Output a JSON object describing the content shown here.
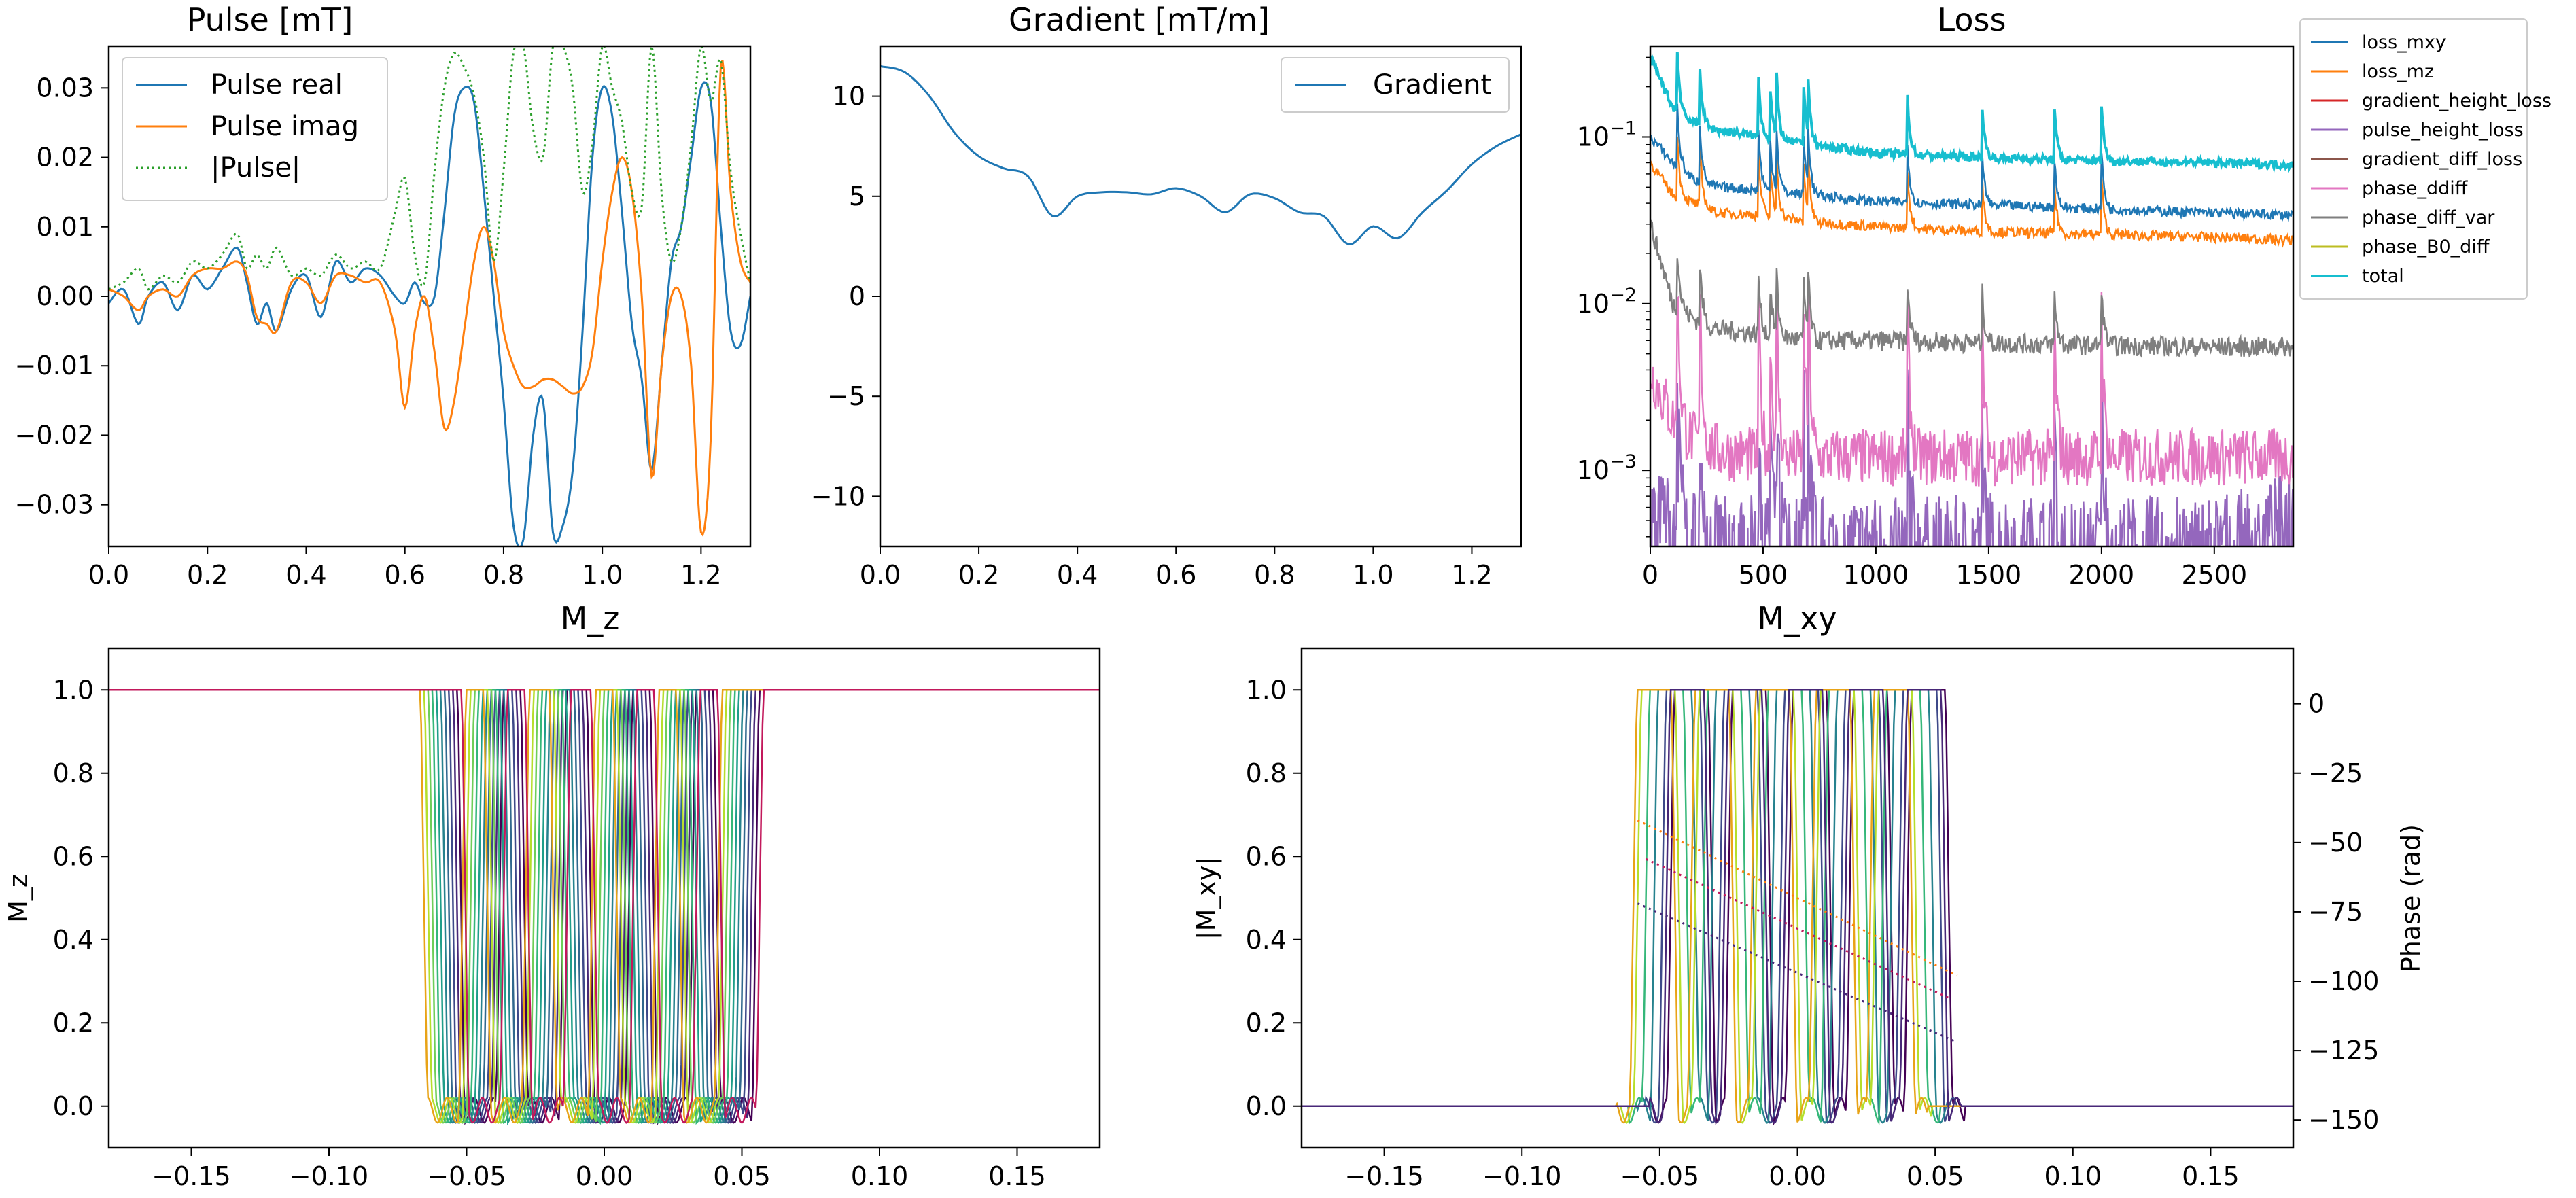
{
  "chart_data": [
    {
      "type": "line",
      "title": "Pulse [mT]",
      "xlim": [
        0,
        1.3
      ],
      "ylim": [
        -0.036,
        0.036
      ],
      "xticks": [
        "0.0",
        "0.2",
        "0.4",
        "0.6",
        "0.8",
        "1.0",
        "1.2"
      ],
      "yticks": [
        "0.03",
        "0.02",
        "0.01",
        "0.00",
        "−0.01",
        "−0.02",
        "−0.03"
      ],
      "legend_position": "top-left",
      "series": [
        {
          "name": "Pulse real",
          "color": "#1f77b4",
          "style": "solid",
          "x": [
            0,
            0.03,
            0.06,
            0.08,
            0.11,
            0.14,
            0.17,
            0.2,
            0.23,
            0.26,
            0.28,
            0.3,
            0.32,
            0.34,
            0.37,
            0.4,
            0.43,
            0.46,
            0.49,
            0.52,
            0.55,
            0.58,
            0.6,
            0.62,
            0.64,
            0.66,
            0.68,
            0.7,
            0.72,
            0.74,
            0.76,
            0.78,
            0.8,
            0.82,
            0.84,
            0.86,
            0.88,
            0.9,
            0.92,
            0.94,
            0.96,
            0.98,
            1.0,
            1.02,
            1.04,
            1.06,
            1.08,
            1.1,
            1.12,
            1.14,
            1.16,
            1.18,
            1.2,
            1.22,
            1.24,
            1.26,
            1.28,
            1.3
          ],
          "y": [
            -0.001,
            0.001,
            -0.004,
            0.0,
            0.002,
            -0.002,
            0.003,
            0.001,
            0.004,
            0.007,
            0.002,
            -0.004,
            -0.001,
            -0.005,
            0.001,
            0.003,
            -0.003,
            0.005,
            0.002,
            0.004,
            0.003,
            0.0,
            -0.001,
            0.002,
            -0.001,
            0.0,
            0.012,
            0.026,
            0.03,
            0.028,
            0.015,
            0.0,
            -0.015,
            -0.033,
            -0.035,
            -0.02,
            -0.015,
            -0.034,
            -0.033,
            -0.025,
            -0.005,
            0.02,
            0.03,
            0.026,
            0.012,
            -0.004,
            -0.012,
            -0.025,
            -0.01,
            0.005,
            0.01,
            0.02,
            0.03,
            0.028,
            0.01,
            -0.005,
            -0.007,
            0.0
          ]
        },
        {
          "name": "Pulse imag",
          "color": "#ff7f0e",
          "style": "solid",
          "x": [
            0,
            0.03,
            0.06,
            0.08,
            0.11,
            0.14,
            0.17,
            0.2,
            0.23,
            0.26,
            0.28,
            0.3,
            0.32,
            0.34,
            0.37,
            0.4,
            0.43,
            0.46,
            0.49,
            0.52,
            0.55,
            0.58,
            0.6,
            0.62,
            0.64,
            0.66,
            0.68,
            0.7,
            0.72,
            0.74,
            0.76,
            0.78,
            0.8,
            0.82,
            0.84,
            0.86,
            0.88,
            0.9,
            0.92,
            0.94,
            0.96,
            0.98,
            1.0,
            1.02,
            1.04,
            1.06,
            1.08,
            1.1,
            1.12,
            1.14,
            1.16,
            1.18,
            1.2,
            1.22,
            1.24,
            1.26,
            1.28,
            1.3
          ],
          "y": [
            0.001,
            0.0,
            -0.002,
            0.0,
            0.001,
            0.0,
            0.003,
            0.004,
            0.004,
            0.005,
            0.003,
            -0.003,
            -0.004,
            -0.005,
            0.002,
            0.002,
            -0.001,
            0.003,
            0.003,
            0.002,
            0.002,
            -0.005,
            -0.016,
            -0.005,
            0.0,
            -0.008,
            -0.019,
            -0.015,
            -0.005,
            0.005,
            0.01,
            0.005,
            -0.005,
            -0.01,
            -0.013,
            -0.013,
            -0.012,
            -0.012,
            -0.013,
            -0.014,
            -0.013,
            -0.008,
            0.005,
            0.015,
            0.02,
            0.015,
            0.0,
            -0.026,
            -0.01,
            0.0,
            0.0,
            -0.01,
            -0.034,
            -0.02,
            0.033,
            0.015,
            0.005,
            0.002
          ]
        },
        {
          "name": "|Pulse|",
          "color": "#2ca02c",
          "style": "dotted",
          "x": [
            0,
            0.03,
            0.06,
            0.08,
            0.11,
            0.14,
            0.17,
            0.2,
            0.23,
            0.26,
            0.28,
            0.3,
            0.32,
            0.34,
            0.37,
            0.4,
            0.43,
            0.46,
            0.49,
            0.52,
            0.55,
            0.58,
            0.6,
            0.62,
            0.64,
            0.66,
            0.68,
            0.7,
            0.72,
            0.74,
            0.76,
            0.78,
            0.8,
            0.82,
            0.84,
            0.86,
            0.88,
            0.9,
            0.92,
            0.94,
            0.96,
            0.98,
            1.0,
            1.02,
            1.04,
            1.06,
            1.08,
            1.1,
            1.12,
            1.14,
            1.16,
            1.18,
            1.2,
            1.22,
            1.24,
            1.26,
            1.28,
            1.3
          ],
          "y": [
            0.001,
            0.002,
            0.004,
            0.001,
            0.003,
            0.002,
            0.005,
            0.004,
            0.006,
            0.009,
            0.004,
            0.006,
            0.004,
            0.007,
            0.003,
            0.004,
            0.003,
            0.006,
            0.004,
            0.005,
            0.004,
            0.012,
            0.017,
            0.006,
            0.002,
            0.018,
            0.03,
            0.035,
            0.033,
            0.029,
            0.02,
            0.005,
            0.018,
            0.035,
            0.036,
            0.024,
            0.02,
            0.036,
            0.036,
            0.03,
            0.015,
            0.022,
            0.036,
            0.03,
            0.025,
            0.015,
            0.013,
            0.036,
            0.015,
            0.005,
            0.01,
            0.022,
            0.036,
            0.028,
            0.034,
            0.018,
            0.009,
            0.002
          ]
        }
      ]
    },
    {
      "type": "line",
      "title": "Gradient [mT/m]",
      "xlim": [
        0,
        1.3
      ],
      "ylim": [
        -12.5,
        12.5
      ],
      "xticks": [
        "0.0",
        "0.2",
        "0.4",
        "0.6",
        "0.8",
        "1.0",
        "1.2"
      ],
      "yticks": [
        "10",
        "5",
        "0",
        "−5",
        "−10"
      ],
      "legend_position": "top-right",
      "series": [
        {
          "name": "Gradient",
          "color": "#1f77b4",
          "x": [
            0,
            0.05,
            0.1,
            0.15,
            0.2,
            0.25,
            0.3,
            0.35,
            0.4,
            0.45,
            0.5,
            0.55,
            0.6,
            0.65,
            0.7,
            0.75,
            0.8,
            0.85,
            0.9,
            0.95,
            1.0,
            1.05,
            1.1,
            1.15,
            1.2,
            1.25,
            1.3
          ],
          "y": [
            11.5,
            11.2,
            10.0,
            8.2,
            7.0,
            6.4,
            6.0,
            4.0,
            5.0,
            5.2,
            5.2,
            5.1,
            5.4,
            5.0,
            4.2,
            5.1,
            4.9,
            4.2,
            4.0,
            2.6,
            3.5,
            2.9,
            4.2,
            5.3,
            6.6,
            7.5,
            8.1
          ]
        }
      ]
    },
    {
      "type": "line",
      "title": "Loss",
      "yscale": "log",
      "xlim": [
        0,
        2850
      ],
      "ylim": [
        0.00035,
        0.35
      ],
      "xticks": [
        "0",
        "500",
        "1000",
        "1500",
        "2000",
        "2500"
      ],
      "yticks": [
        "10",
        "10",
        "10"
      ],
      "ytick_exponents": [
        "−1",
        "−2",
        "−3"
      ],
      "legend_position": "outside-right",
      "series": [
        {
          "name": "loss_mxy",
          "color": "#1f77b4",
          "x": [
            0,
            100,
            200,
            300,
            500,
            700,
            1000,
            1500,
            2000,
            2500,
            2850
          ],
          "y": [
            0.1,
            0.07,
            0.055,
            0.05,
            0.048,
            0.045,
            0.041,
            0.039,
            0.037,
            0.035,
            0.034
          ]
        },
        {
          "name": "loss_mz",
          "color": "#ff7f0e",
          "x": [
            0,
            100,
            200,
            300,
            500,
            700,
            1000,
            1500,
            2000,
            2500,
            2850
          ],
          "y": [
            0.07,
            0.045,
            0.04,
            0.035,
            0.034,
            0.031,
            0.029,
            0.027,
            0.026,
            0.025,
            0.024
          ]
        },
        {
          "name": "gradient_height_loss",
          "color": "#d62728",
          "x": [],
          "y": []
        },
        {
          "name": "pulse_height_loss",
          "color": "#9467bd",
          "x": [
            0,
            300,
            600,
            900,
            1200,
            1500,
            1800,
            2100,
            2400,
            2700,
            2850
          ],
          "y": [
            0.0006,
            0.0004,
            0.0004,
            0.0004,
            0.0004,
            0.0004,
            0.0004,
            0.0004,
            0.0004,
            0.00045,
            0.0006
          ]
        },
        {
          "name": "gradient_diff_loss",
          "color": "#8c564b",
          "x": [],
          "y": []
        },
        {
          "name": "phase_ddiff",
          "color": "#e377c2",
          "x": [
            0,
            100,
            200,
            300,
            500,
            700,
            1000,
            1500,
            2000,
            2500,
            2850
          ],
          "y": [
            0.004,
            0.002,
            0.0015,
            0.0013,
            0.0012,
            0.0012,
            0.0012,
            0.0012,
            0.0012,
            0.0012,
            0.0012
          ]
        },
        {
          "name": "phase_diff_var",
          "color": "#7f7f7f",
          "x": [
            0,
            100,
            200,
            300,
            500,
            700,
            1000,
            1500,
            2000,
            2500,
            2850
          ],
          "y": [
            0.03,
            0.01,
            0.008,
            0.007,
            0.0065,
            0.006,
            0.006,
            0.0058,
            0.0056,
            0.0055,
            0.0055
          ]
        },
        {
          "name": "phase_B0_diff",
          "color": "#bcbd22",
          "x": [],
          "y": []
        },
        {
          "name": "total",
          "color": "#17becf",
          "x": [
            0,
            100,
            200,
            300,
            500,
            700,
            1000,
            1500,
            2000,
            2500,
            2850
          ],
          "y": [
            0.3,
            0.15,
            0.12,
            0.11,
            0.1,
            0.09,
            0.08,
            0.075,
            0.072,
            0.07,
            0.068
          ]
        }
      ]
    },
    {
      "type": "line",
      "title": "M_z",
      "ylabel": "M_z",
      "xlim": [
        -0.18,
        0.18
      ],
      "ylim": [
        -0.1,
        1.1
      ],
      "xticks": [
        "−0.15",
        "−0.10",
        "−0.05",
        "0.00",
        "0.05",
        "0.10",
        "0.15"
      ],
      "yticks": [
        "1.0",
        "0.8",
        "0.6",
        "0.4",
        "0.2",
        "0.0"
      ],
      "band_edges": [
        -0.058,
        -0.044,
        -0.035,
        -0.021,
        -0.011,
        0.003,
        0.012,
        0.026,
        0.035,
        0.049
      ],
      "series": [
        {
          "name": "",
          "color": "#440154",
          "shift": 0.006
        },
        {
          "name": "",
          "color": "#482878",
          "shift": 0.0045
        },
        {
          "name": "",
          "color": "#3e4989",
          "shift": 0.003
        },
        {
          "name": "",
          "color": "#31688e",
          "shift": 0.0015
        },
        {
          "name": "",
          "color": "#26828e",
          "shift": 0.0
        },
        {
          "name": "",
          "color": "#1f9e89",
          "shift": -0.0015
        },
        {
          "name": "",
          "color": "#35b779",
          "shift": -0.003
        },
        {
          "name": "",
          "color": "#6ece58",
          "shift": -0.0045
        },
        {
          "name": "",
          "color": "#b5de2b",
          "shift": -0.006
        },
        {
          "name": "",
          "color": "#e8a317",
          "shift": -0.0075
        },
        {
          "name": "",
          "color": "#c2185b",
          "shift": 0.0075
        }
      ]
    },
    {
      "type": "line",
      "title": "M_xy",
      "ylabel": "|M_xy|",
      "y2label": "Phase (rad)",
      "xlim": [
        -0.18,
        0.18
      ],
      "ylim": [
        -0.1,
        1.1
      ],
      "y2lim": [
        -160,
        20
      ],
      "xticks": [
        "−0.15",
        "−0.10",
        "−0.05",
        "0.00",
        "0.05",
        "0.10",
        "0.15"
      ],
      "yticks": [
        "1.0",
        "0.8",
        "0.6",
        "0.4",
        "0.2",
        "0.0"
      ],
      "y2ticks": [
        "0",
        "−25",
        "−50",
        "−75",
        "−100",
        "−125",
        "−150"
      ],
      "band_edges": [
        -0.052,
        -0.037,
        -0.031,
        -0.016,
        -0.009,
        0.006,
        0.013,
        0.028,
        0.034,
        0.049
      ],
      "phase_series": [
        {
          "name": "",
          "color": "#ff7f0e",
          "x": [
            -0.058,
            0.058
          ],
          "y": [
            -42,
            -98
          ]
        },
        {
          "name": "",
          "color": "#c2185b",
          "x": [
            -0.055,
            0.055
          ],
          "y": [
            -56,
            -106
          ]
        },
        {
          "name": "",
          "color": "#482878",
          "x": [
            -0.058,
            0.058
          ],
          "y": [
            -72,
            -122
          ]
        }
      ]
    }
  ],
  "legend_loss": [
    {
      "label": "loss_mxy",
      "color": "#1f77b4"
    },
    {
      "label": "loss_mz",
      "color": "#ff7f0e"
    },
    {
      "label": "gradient_height_loss",
      "color": "#d62728"
    },
    {
      "label": "pulse_height_loss",
      "color": "#9467bd"
    },
    {
      "label": "gradient_diff_loss",
      "color": "#8c564b"
    },
    {
      "label": "phase_ddiff",
      "color": "#e377c2"
    },
    {
      "label": "phase_diff_var",
      "color": "#7f7f7f"
    },
    {
      "label": "phase_B0_diff",
      "color": "#bcbd22"
    },
    {
      "label": "total",
      "color": "#17becf"
    }
  ]
}
